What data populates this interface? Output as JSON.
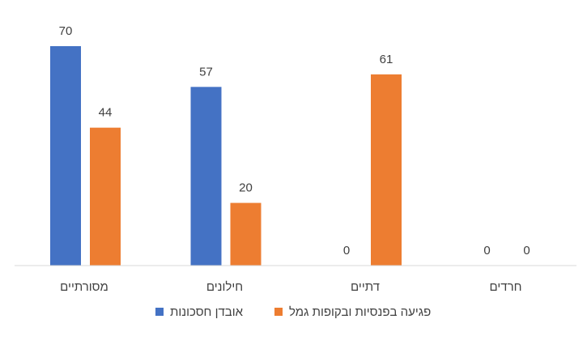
{
  "chart_data": {
    "type": "bar",
    "categories": [
      "מסורתיים",
      "חילונים",
      "דתיים",
      "חרדים"
    ],
    "series": [
      {
        "name": "אובדן חסכונות",
        "values": [
          70,
          57,
          0,
          0
        ],
        "color": "#4472C4"
      },
      {
        "name": "פגיעה בפנסיות ובקופות גמל",
        "values": [
          44,
          20,
          61,
          0
        ],
        "color": "#ED7D31"
      }
    ],
    "ylim": [
      0,
      80
    ],
    "title": "",
    "xlabel": "",
    "ylabel": "",
    "grid": false,
    "legend_position": "bottom",
    "data_labels": true
  }
}
